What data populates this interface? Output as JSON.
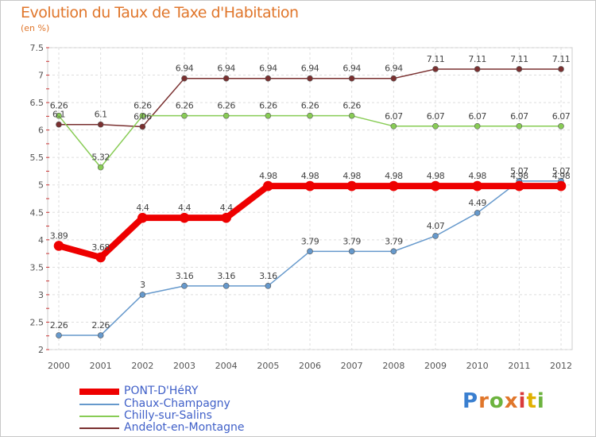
{
  "title": "Evolution du Taux de Taxe d'Habitation",
  "unit": "(en %)",
  "logo": {
    "text": "Proxiti",
    "letters": [
      "P",
      "r",
      "o",
      "x",
      "i",
      "t",
      "i"
    ],
    "colors": [
      "#3a7fd0",
      "#e0762b",
      "#6cb33e",
      "#e0762b",
      "#d93b3b",
      "#e0b000",
      "#6cb33e"
    ]
  },
  "chart_data": {
    "type": "line",
    "title": "Evolution du Taux de Taxe d'Habitation",
    "ylabel": "(en %)",
    "xlabel": "",
    "x": [
      "2000",
      "2001",
      "2002",
      "2003",
      "2004",
      "2005",
      "2006",
      "2007",
      "2008",
      "2009",
      "2010",
      "2011",
      "2012"
    ],
    "ylim": [
      2,
      7.5
    ],
    "yticks": [
      "2",
      "2.5",
      "3",
      "3.5",
      "4",
      "4.5",
      "5",
      "5.5",
      "6",
      "6.5",
      "7",
      "7.5"
    ],
    "grid": true,
    "legend_position": "bottom-left",
    "series": [
      {
        "name": "PONT-D'HéRY",
        "color": "#ee0000",
        "values": [
          3.89,
          3.68,
          4.4,
          4.4,
          4.4,
          4.98,
          4.98,
          4.98,
          4.98,
          4.98,
          4.98,
          4.98,
          4.98
        ],
        "labels": [
          "3.89",
          "3.68",
          "4.4",
          "4.4",
          "4.4",
          "4.98",
          "4.98",
          "4.98",
          "4.98",
          "4.98",
          "4.98",
          "4.98",
          "4.98"
        ]
      },
      {
        "name": "Chaux-Champagny",
        "color": "#6699cc",
        "values": [
          2.26,
          2.26,
          3,
          3.16,
          3.16,
          3.16,
          3.79,
          3.79,
          3.79,
          4.07,
          4.49,
          5.07,
          5.07
        ],
        "labels": [
          "2.26",
          "2.26",
          "3",
          "3.16",
          "3.16",
          "3.16",
          "3.79",
          "3.79",
          "3.79",
          "4.07",
          "4.49",
          "5.07",
          "5.07"
        ]
      },
      {
        "name": "Chilly-sur-Salins",
        "color": "#88cc55",
        "values": [
          6.26,
          5.32,
          6.26,
          6.26,
          6.26,
          6.26,
          6.26,
          6.26,
          6.07,
          6.07,
          6.07,
          6.07,
          6.07
        ],
        "labels": [
          "6.26",
          "5.32",
          "6.26",
          "6.26",
          "6.26",
          "6.26",
          "6.26",
          "6.26",
          "6.07",
          "6.07",
          "6.07",
          "6.07",
          "6.07"
        ]
      },
      {
        "name": "Andelot-en-Montagne",
        "color": "#7a3030",
        "values": [
          6.1,
          6.1,
          6.06,
          6.94,
          6.94,
          6.94,
          6.94,
          6.94,
          6.94,
          7.11,
          7.11,
          7.11,
          7.11
        ],
        "labels": [
          "6.1",
          "6.1",
          "6.06",
          "6.94",
          "6.94",
          "6.94",
          "6.94",
          "6.94",
          "6.94",
          "7.11",
          "7.11",
          "7.11",
          "7.11"
        ]
      }
    ]
  }
}
